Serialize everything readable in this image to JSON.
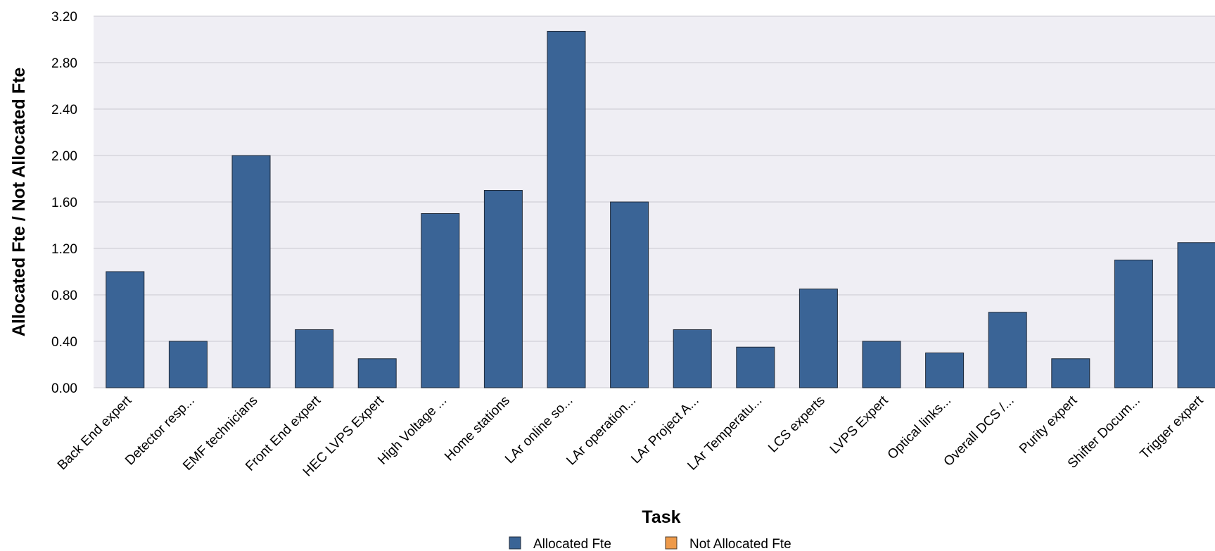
{
  "chart_data": {
    "type": "bar",
    "xlabel": "Task",
    "ylabel": "Allocated Fte / Not Allocated Fte",
    "ylim": [
      0,
      3.2
    ],
    "yticks": [
      "0.00",
      "0.40",
      "0.80",
      "1.20",
      "1.60",
      "2.00",
      "2.40",
      "2.80",
      "3.20"
    ],
    "grid": true,
    "legend_position": "bottom",
    "categories": [
      "Back End expert",
      "Detector resp...",
      "EMF technicians",
      "Front End expert",
      "HEC LVPS Expert",
      "High Voltage ...",
      "Home stations",
      "LAr online so...",
      "LAr operation...",
      "LAr Project A...",
      "LAr Temperatu...",
      "LCS experts",
      "LVPS Expert",
      "Optical links...",
      "Overall DCS /...",
      "Purity expert",
      "Shifter Docum...",
      "Trigger expert"
    ],
    "series": [
      {
        "name": "Allocated Fte",
        "color": "#3a6496",
        "values": [
          1.0,
          0.4,
          2.0,
          0.5,
          0.25,
          1.5,
          1.7,
          3.07,
          1.6,
          0.5,
          0.35,
          0.85,
          0.4,
          0.3,
          0.65,
          0.25,
          1.1,
          1.25
        ]
      },
      {
        "name": "Not Allocated Fte",
        "color": "#ee9a4a",
        "values": [
          0,
          0,
          0,
          0,
          0,
          0,
          0,
          0,
          0,
          0,
          0,
          0,
          0,
          0,
          0,
          0,
          0,
          0
        ]
      }
    ],
    "plot_background": "#efeef4",
    "grid_color": "#c9c8d0"
  }
}
